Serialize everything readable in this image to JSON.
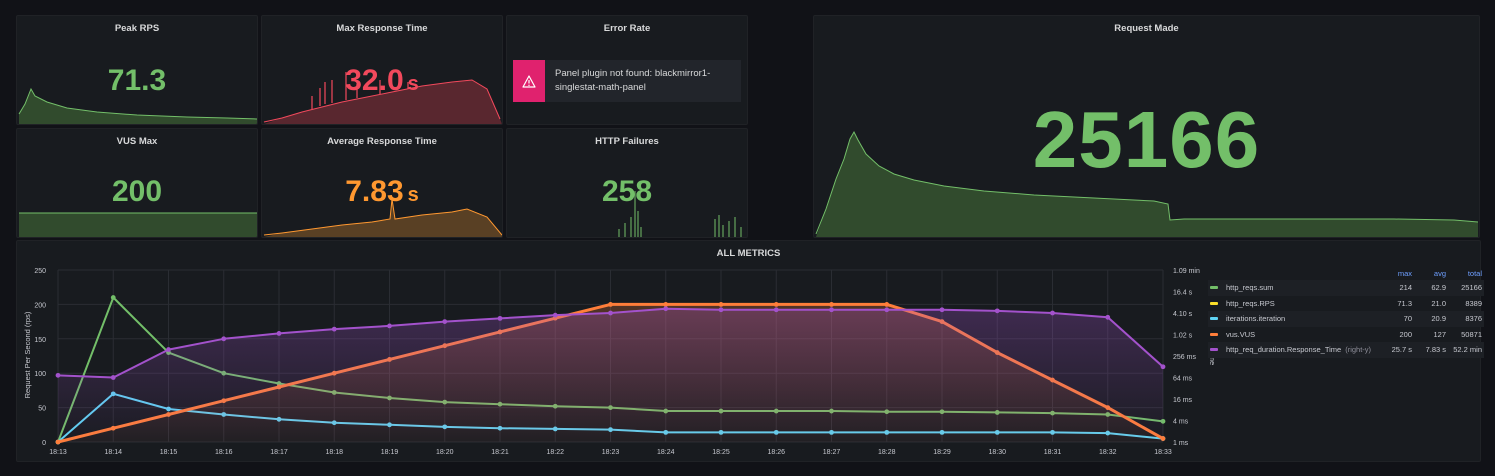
{
  "panels": {
    "peak_rps": {
      "title": "Peak RPS",
      "value": "71.3",
      "color": "#73bf69"
    },
    "max_response_time": {
      "title": "Max Response Time",
      "value": "32.0",
      "unit": "s",
      "color": "#f2495c"
    },
    "error_rate": {
      "title": "Error Rate",
      "error_message_line1": "Panel plugin not found: blackmirror1-",
      "error_message_line2": "singlestat-math-panel",
      "icon": "warning-triangle-icon"
    },
    "request_made": {
      "title": "Request Made",
      "value": "25166",
      "color": "#73bf69"
    },
    "vus_max": {
      "title": "VUS Max",
      "value": "200",
      "color": "#73bf69"
    },
    "average_response_time": {
      "title": "Average Response Time",
      "value": "7.83",
      "unit": "s",
      "color": "#ff9830"
    },
    "http_failures": {
      "title": "HTTP Failures",
      "value": "258",
      "color": "#73bf69"
    }
  },
  "all_metrics": {
    "title": "ALL METRICS",
    "legend": {
      "headers": {
        "max": "max",
        "avg": "avg",
        "total": "total"
      },
      "rows": [
        {
          "name": "http_reqs.sum",
          "note": "",
          "max": "214",
          "avg": "62.9",
          "total": "25166",
          "color": "#73bf69"
        },
        {
          "name": "http_reqs.RPS",
          "note": "",
          "max": "71.3",
          "avg": "21.0",
          "total": "8389",
          "color": "#fade2a"
        },
        {
          "name": "iterations.iteration",
          "note": "",
          "max": "70",
          "avg": "20.9",
          "total": "8376",
          "color": "#5fd3f3"
        },
        {
          "name": "vus.VUS",
          "note": "",
          "max": "200",
          "avg": "127",
          "total": "50871",
          "color": "#ff7e3a"
        },
        {
          "name": "http_req_duration.Response_Time",
          "note": "(right-y)",
          "max": "25.7 s",
          "avg": "7.83 s",
          "total": "52.2 min",
          "color": "#a352cc"
        }
      ]
    },
    "chart_data": {
      "type": "line",
      "x": [
        "18:13",
        "18:14",
        "18:15",
        "18:16",
        "18:17",
        "18:18",
        "18:19",
        "18:20",
        "18:21",
        "18:22",
        "18:23",
        "18:24",
        "18:25",
        "18:26",
        "18:27",
        "18:28",
        "18:29",
        "18:30",
        "18:31",
        "18:32",
        "18:33"
      ],
      "ylabel": "Request Per Second (rps)",
      "y2label": "Time",
      "ylim": [
        0,
        250
      ],
      "yticks": [
        "0",
        "50",
        "100",
        "150",
        "200",
        "250"
      ],
      "y2ticks": [
        "1 ms",
        "4 ms",
        "16 ms",
        "64 ms",
        "256 ms",
        "1.02 s",
        "4.10 s",
        "16.4 s",
        "1.09 min"
      ],
      "grid": true,
      "legend_position": "right",
      "series": [
        {
          "name": "http_reqs.sum",
          "color": "#73bf69",
          "axis": "left",
          "values": [
            0,
            210,
            130,
            100,
            85,
            72,
            64,
            58,
            55,
            52,
            50,
            45,
            45,
            45,
            45,
            44,
            44,
            43,
            42,
            40,
            30
          ]
        },
        {
          "name": "iterations.iteration",
          "color": "#5fd3f3",
          "axis": "left",
          "values": [
            0,
            70,
            48,
            40,
            33,
            28,
            25,
            22,
            20,
            19,
            18,
            14,
            14,
            14,
            14,
            14,
            14,
            14,
            14,
            13,
            5
          ]
        },
        {
          "name": "vus.VUS",
          "color": "#ff7e3a",
          "axis": "left",
          "values": [
            0,
            20,
            40,
            60,
            80,
            100,
            120,
            140,
            160,
            180,
            200,
            200,
            200,
            200,
            200,
            200,
            175,
            130,
            90,
            50,
            5
          ]
        },
        {
          "name": "http_req_duration.Response_Time",
          "color": "#a352cc",
          "axis": "right",
          "unit": "log2 ms",
          "values": [
            6.2,
            6.0,
            8.6,
            9.6,
            10.1,
            10.5,
            10.8,
            11.2,
            11.5,
            11.8,
            12.0,
            12.4,
            12.3,
            12.3,
            12.3,
            12.3,
            12.3,
            12.2,
            12.0,
            11.6,
            7.0
          ]
        }
      ]
    }
  }
}
